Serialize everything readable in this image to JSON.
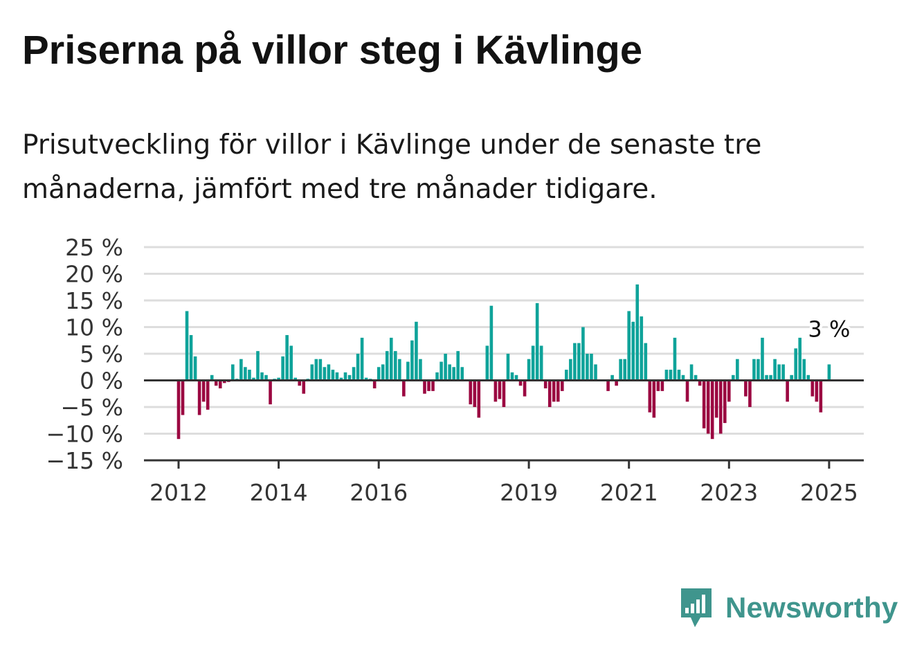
{
  "title": "Priserna på villor steg i Kävlinge",
  "subtitle": "Prisutveckling för villor i Kävlinge under de senaste tre månaderna, jämfört med tre månader tidigare.",
  "brand": {
    "name": "Newsworthy",
    "icon": "newsworthy-bar-chart-icon",
    "color": "#3f958d"
  },
  "colors": {
    "positive": "#0fa39a",
    "negative": "#9b0841",
    "grid": "#dddddd",
    "axis": "#333333"
  },
  "chart_data": {
    "type": "bar",
    "ylim": [
      -15,
      25
    ],
    "y_ticks": [
      25,
      20,
      15,
      10,
      5,
      0,
      -5,
      -10,
      -15
    ],
    "y_tick_labels": [
      "25 %",
      "20 %",
      "15 %",
      "10 %",
      "5 %",
      "0 %",
      "−5 %",
      "−10 %",
      "−15 %"
    ],
    "x_ticks": [
      {
        "label": "2012",
        "index": 0
      },
      {
        "label": "2014",
        "index": 24
      },
      {
        "label": "2016",
        "index": 48
      },
      {
        "label": "2019",
        "index": 84
      },
      {
        "label": "2021",
        "index": 108
      },
      {
        "label": "2023",
        "index": 132
      },
      {
        "label": "2025",
        "index": 156
      }
    ],
    "period": "monthly, January 2012 – January 2025",
    "grid": true,
    "annotation": {
      "text": "3 %",
      "index": 156,
      "value": 3
    },
    "values": [
      -11,
      -6.5,
      13,
      8.5,
      4.5,
      -6.5,
      -4,
      -5.5,
      1,
      -1,
      -1.5,
      -0.5,
      -0.3,
      3,
      0.3,
      4,
      2.5,
      2,
      0.5,
      5.5,
      1.5,
      1,
      -4.5,
      0.3,
      0.5,
      4.5,
      8.5,
      6.5,
      0.5,
      -1,
      -2.5,
      0.3,
      3,
      4,
      4,
      2.5,
      3,
      2,
      1.5,
      0.5,
      1.5,
      1,
      2.5,
      5,
      8,
      0.5,
      0.3,
      -1.5,
      2.5,
      3,
      5.5,
      8,
      5.5,
      4,
      -3,
      3.5,
      7.5,
      11,
      4,
      -2.5,
      -2,
      -2,
      1.5,
      3.5,
      5,
      3,
      2.5,
      5.5,
      2.5,
      0.2,
      -4.5,
      -5,
      -7,
      0.2,
      6.5,
      14,
      -4,
      -3.5,
      -5,
      5,
      1.5,
      1,
      -1,
      -3,
      4,
      6.5,
      14.5,
      6.5,
      -1.5,
      -5,
      -4,
      -4,
      -2,
      2,
      4,
      7,
      7,
      10,
      5,
      5,
      3,
      0.2,
      0.2,
      -2,
      1,
      -1,
      4,
      4,
      13,
      11,
      18,
      12,
      7,
      -6,
      -7,
      -2,
      -2,
      2,
      2,
      8,
      2,
      1,
      -4,
      3,
      1,
      -1,
      -9,
      -10,
      -11,
      -7,
      -10,
      -8,
      -4,
      1,
      4,
      0.2,
      -3,
      -5,
      4,
      4,
      8,
      1,
      1,
      4,
      3,
      3,
      -4,
      1,
      6,
      8,
      4,
      1,
      -3,
      -4,
      -6,
      0.2,
      3
    ]
  }
}
